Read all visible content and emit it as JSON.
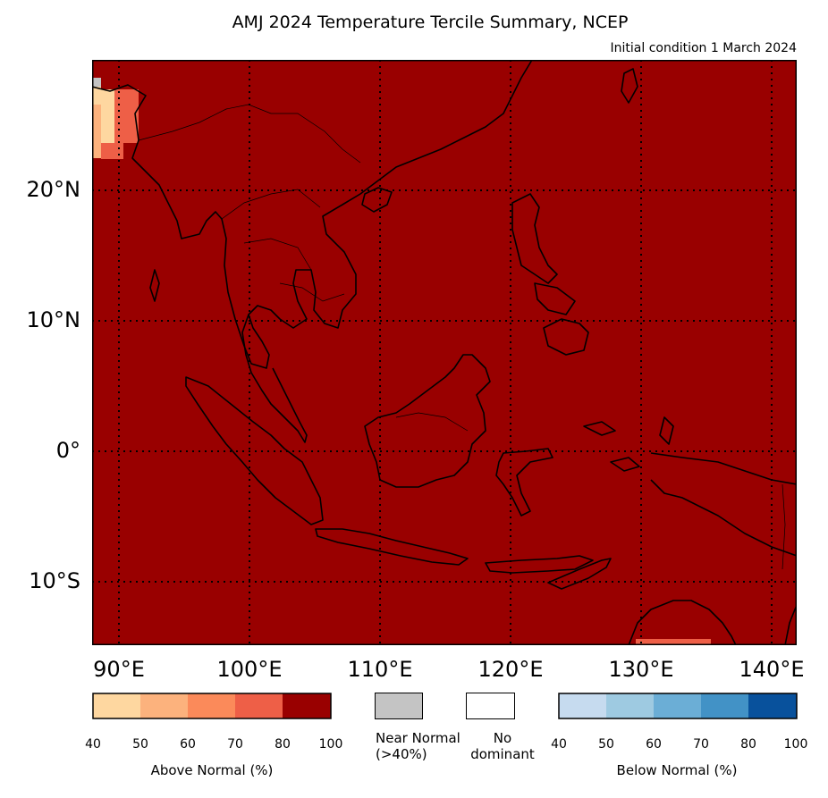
{
  "title": "AMJ 2024 Temperature Tercile Summary, NCEP",
  "subtitle": "Initial condition 1 March 2024",
  "colors": {
    "ocean_fill": "#990000",
    "above": [
      "#fed7a0",
      "#fcb27d",
      "#fb8a5a",
      "#ee5f47",
      "#990000"
    ],
    "below": [
      "#c6dbef",
      "#9ecae1",
      "#6baed6",
      "#4292c6",
      "#08519c"
    ],
    "near_normal": "#c4c4c4",
    "no_dominant": "#ffffff"
  },
  "map": {
    "lat_labels": [
      "20°N",
      "10°N",
      "0°",
      "10°S"
    ],
    "lon_labels": [
      "90°E",
      "100°E",
      "110°E",
      "120°E",
      "130°E",
      "140°E"
    ]
  },
  "legend": {
    "above": {
      "ticks": [
        "40",
        "50",
        "60",
        "70",
        "80",
        "100"
      ],
      "label": "Above Normal (%)"
    },
    "near_normal": {
      "label_line1": "Near Normal",
      "label_line2": "(>40%)"
    },
    "no_dominant": {
      "label_line1": "No",
      "label_line2": "dominant"
    },
    "below": {
      "ticks": [
        "40",
        "50",
        "60",
        "70",
        "80",
        "100"
      ],
      "label": "Below Normal (%)"
    }
  }
}
